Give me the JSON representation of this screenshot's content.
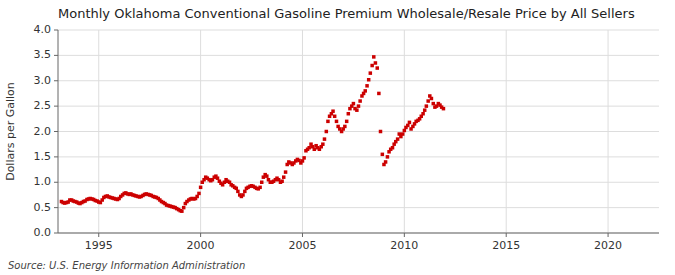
{
  "chart_data": {
    "type": "scatter",
    "title": "Monthly Oklahoma Conventional Gasoline Premium Wholesale/Resale Price by All Sellers",
    "ylabel": "Dollars per Gallon",
    "annotations": [
      "Source: U.S. Energy Information Administration"
    ],
    "color": "#cc0000",
    "marker": "square",
    "grid": true,
    "xlim": [
      1993.0,
      2022.5
    ],
    "ylim": [
      0.0,
      4.0
    ],
    "xticks": [
      1995,
      2000,
      2005,
      2010,
      2015,
      2020
    ],
    "yticks": [
      {
        "value": 0.0,
        "label": "0.0"
      },
      0.5,
      {
        "value": 1.0,
        "label": "1.0"
      },
      1.5,
      {
        "value": 2.0,
        "label": "2.0"
      },
      2.5,
      {
        "value": 3.0,
        "label": "3.0"
      },
      3.5,
      {
        "value": 4.0,
        "label": "4.0"
      }
    ],
    "x": [
      1993.17,
      1993.25,
      1993.33,
      1993.42,
      1993.5,
      1993.58,
      1993.67,
      1993.75,
      1993.83,
      1993.92,
      1994.0,
      1994.08,
      1994.17,
      1994.25,
      1994.33,
      1994.42,
      1994.5,
      1994.58,
      1994.67,
      1994.75,
      1994.83,
      1994.92,
      1995.0,
      1995.08,
      1995.17,
      1995.25,
      1995.33,
      1995.42,
      1995.5,
      1995.58,
      1995.67,
      1995.75,
      1995.83,
      1995.92,
      1996.0,
      1996.08,
      1996.17,
      1996.25,
      1996.33,
      1996.42,
      1996.5,
      1996.58,
      1996.67,
      1996.75,
      1996.83,
      1996.92,
      1997.0,
      1997.08,
      1997.17,
      1997.25,
      1997.33,
      1997.42,
      1997.5,
      1997.58,
      1997.67,
      1997.75,
      1997.83,
      1997.92,
      1998.0,
      1998.08,
      1998.17,
      1998.25,
      1998.33,
      1998.42,
      1998.5,
      1998.58,
      1998.67,
      1998.75,
      1998.83,
      1998.92,
      1999.0,
      1999.08,
      1999.17,
      1999.25,
      1999.33,
      1999.42,
      1999.5,
      1999.58,
      1999.67,
      1999.75,
      1999.83,
      1999.92,
      2000.0,
      2000.08,
      2000.17,
      2000.25,
      2000.33,
      2000.42,
      2000.5,
      2000.58,
      2000.67,
      2000.75,
      2000.83,
      2000.92,
      2001.0,
      2001.08,
      2001.17,
      2001.25,
      2001.33,
      2001.42,
      2001.5,
      2001.58,
      2001.67,
      2001.75,
      2001.83,
      2001.92,
      2002.0,
      2002.08,
      2002.17,
      2002.25,
      2002.33,
      2002.42,
      2002.5,
      2002.58,
      2002.67,
      2002.75,
      2002.83,
      2002.92,
      2003.0,
      2003.08,
      2003.17,
      2003.25,
      2003.33,
      2003.42,
      2003.5,
      2003.58,
      2003.67,
      2003.75,
      2003.83,
      2003.92,
      2004.0,
      2004.08,
      2004.17,
      2004.25,
      2004.33,
      2004.42,
      2004.5,
      2004.58,
      2004.67,
      2004.75,
      2004.83,
      2004.92,
      2005.0,
      2005.08,
      2005.17,
      2005.25,
      2005.33,
      2005.42,
      2005.5,
      2005.58,
      2005.67,
      2005.75,
      2005.83,
      2005.92,
      2006.0,
      2006.08,
      2006.17,
      2006.25,
      2006.33,
      2006.42,
      2006.5,
      2006.58,
      2006.67,
      2006.75,
      2006.83,
      2006.92,
      2007.0,
      2007.08,
      2007.17,
      2007.25,
      2007.33,
      2007.42,
      2007.5,
      2007.58,
      2007.67,
      2007.75,
      2007.83,
      2007.92,
      2008.0,
      2008.08,
      2008.17,
      2008.25,
      2008.33,
      2008.42,
      2008.5,
      2008.58,
      2008.67,
      2008.75,
      2008.83,
      2008.92,
      2009.0,
      2009.08,
      2009.17,
      2009.25,
      2009.33,
      2009.42,
      2009.5,
      2009.58,
      2009.67,
      2009.75,
      2009.83,
      2009.92,
      2010.0,
      2010.08,
      2010.17,
      2010.25,
      2010.33,
      2010.42,
      2010.5,
      2010.58,
      2010.67,
      2010.75,
      2010.83,
      2010.92,
      2011.0,
      2011.08,
      2011.17,
      2011.25,
      2011.33,
      2011.42,
      2011.5,
      2011.58,
      2011.67,
      2011.75,
      2011.83,
      2011.92
    ],
    "values": [
      0.62,
      0.6,
      0.59,
      0.6,
      0.61,
      0.65,
      0.65,
      0.63,
      0.62,
      0.61,
      0.59,
      0.58,
      0.6,
      0.62,
      0.63,
      0.66,
      0.67,
      0.68,
      0.67,
      0.66,
      0.64,
      0.63,
      0.61,
      0.6,
      0.65,
      0.7,
      0.72,
      0.73,
      0.71,
      0.7,
      0.69,
      0.68,
      0.67,
      0.66,
      0.68,
      0.72,
      0.75,
      0.78,
      0.79,
      0.77,
      0.76,
      0.77,
      0.75,
      0.74,
      0.73,
      0.72,
      0.71,
      0.72,
      0.74,
      0.76,
      0.77,
      0.76,
      0.75,
      0.74,
      0.72,
      0.71,
      0.7,
      0.68,
      0.65,
      0.62,
      0.6,
      0.58,
      0.55,
      0.54,
      0.53,
      0.52,
      0.51,
      0.5,
      0.48,
      0.46,
      0.44,
      0.43,
      0.5,
      0.58,
      0.62,
      0.65,
      0.67,
      0.68,
      0.67,
      0.68,
      0.72,
      0.78,
      0.9,
      1.0,
      1.05,
      1.1,
      1.08,
      1.05,
      1.03,
      1.05,
      1.1,
      1.12,
      1.08,
      1.02,
      0.98,
      0.95,
      1.0,
      1.05,
      1.02,
      1.0,
      0.95,
      0.93,
      0.9,
      0.88,
      0.82,
      0.75,
      0.72,
      0.75,
      0.82,
      0.88,
      0.9,
      0.92,
      0.93,
      0.92,
      0.9,
      0.88,
      0.87,
      0.9,
      1.0,
      1.1,
      1.15,
      1.12,
      1.05,
      1.0,
      1.0,
      1.02,
      1.05,
      1.08,
      1.05,
      1.0,
      1.02,
      1.1,
      1.2,
      1.35,
      1.4,
      1.38,
      1.35,
      1.38,
      1.42,
      1.45,
      1.43,
      1.38,
      1.42,
      1.48,
      1.62,
      1.65,
      1.68,
      1.75,
      1.7,
      1.65,
      1.72,
      1.68,
      1.65,
      1.7,
      1.75,
      1.85,
      2.0,
      2.2,
      2.3,
      2.35,
      2.4,
      2.3,
      2.2,
      2.1,
      2.05,
      2.0,
      2.05,
      2.1,
      2.2,
      2.35,
      2.45,
      2.5,
      2.55,
      2.45,
      2.42,
      2.5,
      2.6,
      2.7,
      2.75,
      2.8,
      2.9,
      3.02,
      3.15,
      3.3,
      3.47,
      3.35,
      3.25,
      2.75,
      2.0,
      1.55,
      1.35,
      1.4,
      1.5,
      1.6,
      1.65,
      1.68,
      1.75,
      1.8,
      1.85,
      1.95,
      1.9,
      1.95,
      2.02,
      2.08,
      2.12,
      2.18,
      2.05,
      2.1,
      2.15,
      2.2,
      2.22,
      2.25,
      2.3,
      2.35,
      2.42,
      2.5,
      2.6,
      2.7,
      2.65,
      2.55,
      2.48,
      2.5,
      2.55,
      2.52,
      2.48,
      2.45
    ]
  }
}
